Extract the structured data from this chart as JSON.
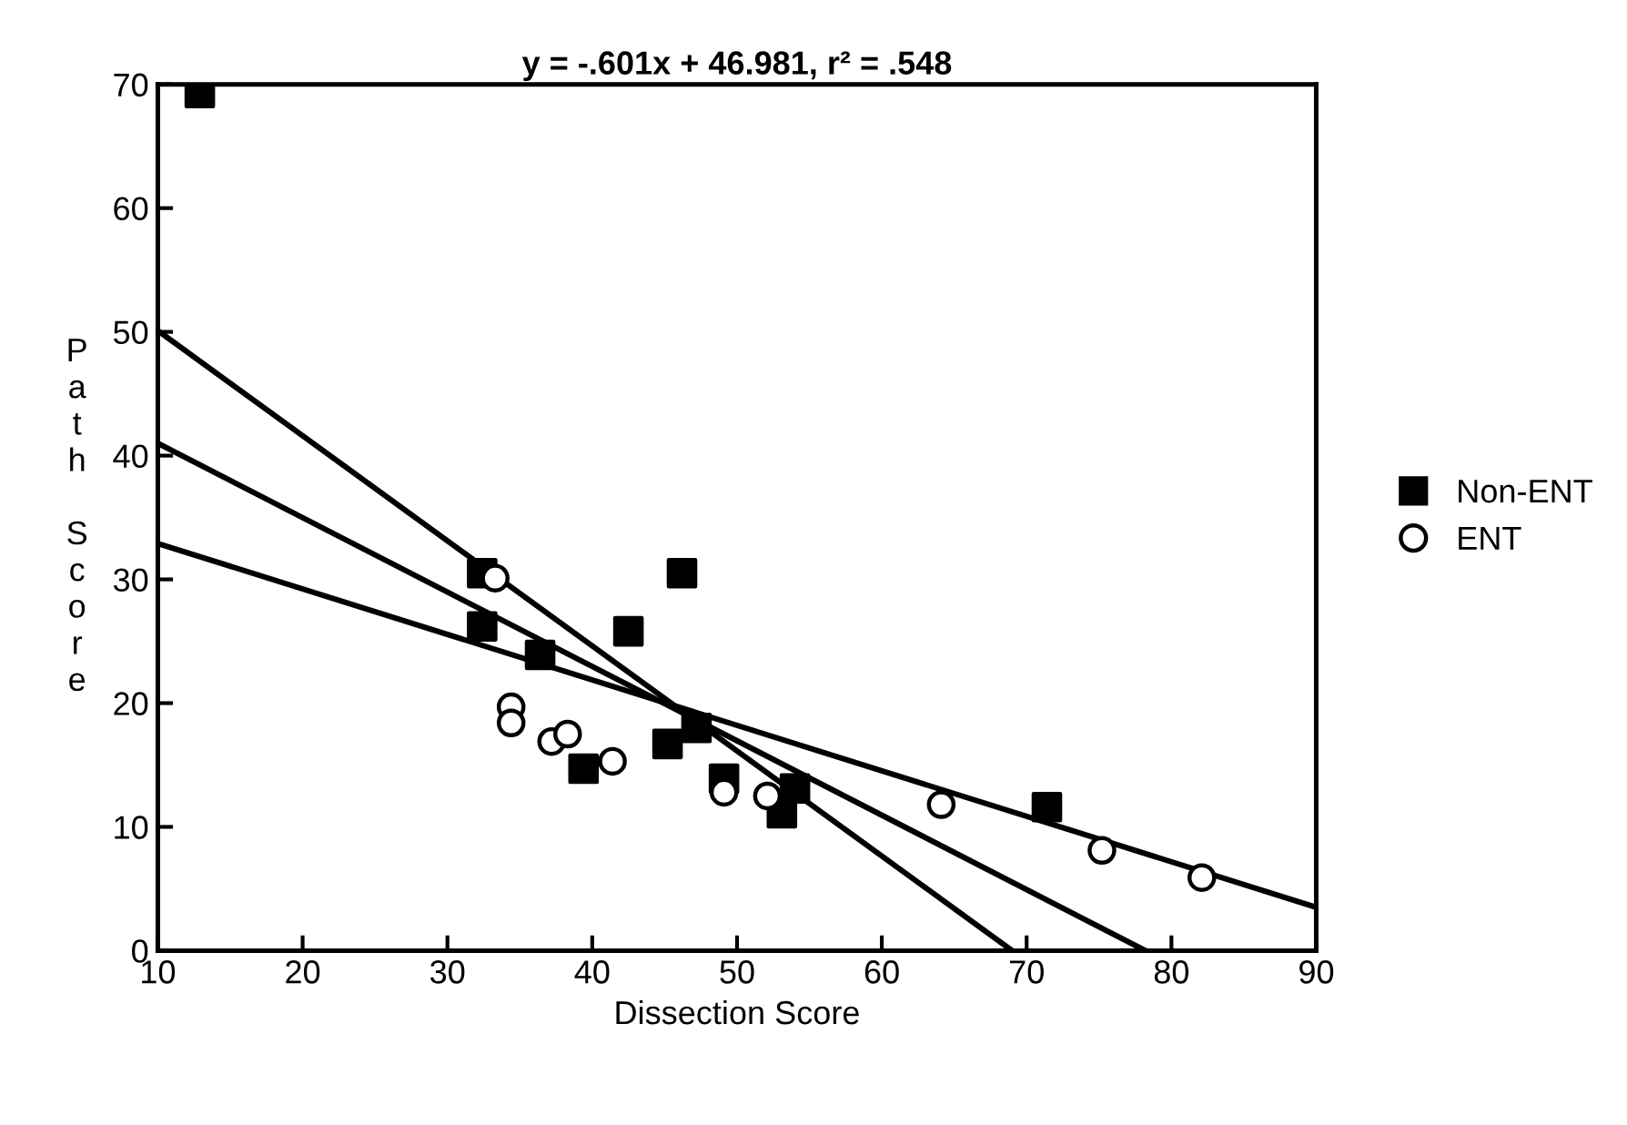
{
  "chart_data": {
    "type": "scatter",
    "title": "y = -.601x + 46.981, r² = .548",
    "xlabel": "Dissection Score",
    "ylabel": "Path Score",
    "xlim": [
      10,
      90
    ],
    "ylim": [
      0,
      70
    ],
    "xticks": [
      10,
      20,
      30,
      40,
      50,
      60,
      70,
      80,
      90
    ],
    "yticks": [
      0,
      10,
      20,
      30,
      40,
      50,
      60,
      70
    ],
    "grid": false,
    "legend": "right",
    "series": [
      {
        "name": "Non-ENT",
        "marker": "square",
        "color": "#000000",
        "x": [
          12.9,
          32.4,
          32.4,
          36.4,
          42.5,
          46.2,
          45.2,
          47.2,
          49.1,
          53.1,
          54.0,
          39.4,
          71.4
        ],
        "values": [
          69.3,
          26.2,
          30.5,
          23.9,
          25.8,
          30.5,
          16.7,
          18.0,
          13.9,
          11.1,
          13.1,
          14.7,
          11.6
        ]
      },
      {
        "name": "ENT",
        "marker": "circle",
        "color": "#000000",
        "x": [
          33.3,
          34.4,
          34.4,
          37.2,
          38.3,
          41.4,
          49.1,
          52.1,
          64.1,
          75.2,
          82.1
        ],
        "values": [
          30.1,
          19.7,
          18.4,
          16.9,
          17.5,
          15.3,
          12.8,
          12.5,
          11.8,
          8.1,
          5.9
        ]
      },
      {
        "type": "line",
        "marker": "none",
        "color": "#000000",
        "x": [
          10,
          69.0
        ],
        "values": [
          50.1,
          0
        ]
      },
      {
        "type": "line",
        "marker": "none",
        "color": "#000000",
        "x": [
          10,
          78.2
        ],
        "values": [
          41.0,
          0
        ]
      },
      {
        "type": "line",
        "marker": "none",
        "color": "#000000",
        "x": [
          10,
          90
        ],
        "values": [
          32.9,
          3.5
        ]
      }
    ]
  }
}
